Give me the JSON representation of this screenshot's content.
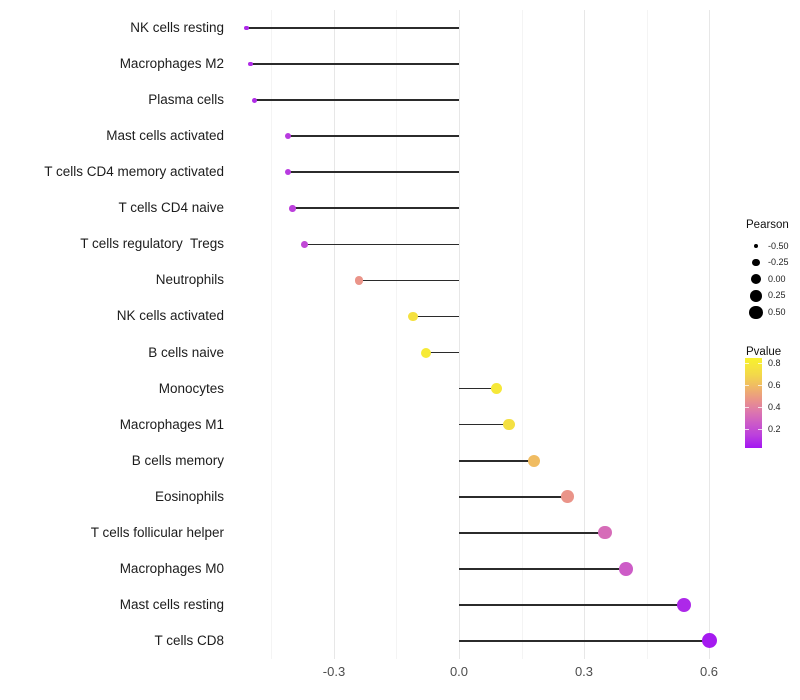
{
  "chart_data": {
    "type": "lollipop",
    "title": "",
    "xlabel": "",
    "ylabel": "",
    "x_axis": {
      "major_ticks": [
        -0.3,
        0.0,
        0.3,
        0.6
      ],
      "major_tick_labels": [
        "-0.3",
        "0.0",
        "0.3",
        "0.6"
      ],
      "minor_ticks": [
        -0.45,
        -0.15,
        0.15,
        0.45
      ],
      "xlim": [
        -0.555,
        0.62
      ],
      "baseline": 0.0
    },
    "points": [
      {
        "label": "NK cells resting",
        "pearson": -0.51,
        "pvalue": 0.08
      },
      {
        "label": "Macrophages M2",
        "pearson": -0.5,
        "pvalue": 0.09
      },
      {
        "label": "Plasma cells",
        "pearson": -0.49,
        "pvalue": 0.09
      },
      {
        "label": "Mast cells activated",
        "pearson": -0.41,
        "pvalue": 0.13
      },
      {
        "label": "T cells CD4 memory activated",
        "pearson": -0.41,
        "pvalue": 0.13
      },
      {
        "label": "T cells CD4 naive",
        "pearson": -0.4,
        "pvalue": 0.15
      },
      {
        "label": "T cells regulatory  Tregs",
        "pearson": -0.37,
        "pvalue": 0.18
      },
      {
        "label": "Neutrophils",
        "pearson": -0.24,
        "pvalue": 0.47
      },
      {
        "label": "NK cells activated",
        "pearson": -0.11,
        "pvalue": 0.75
      },
      {
        "label": "B cells naive",
        "pearson": -0.08,
        "pvalue": 0.8
      },
      {
        "label": "Monocytes",
        "pearson": 0.09,
        "pvalue": 0.79
      },
      {
        "label": "Macrophages M1",
        "pearson": 0.12,
        "pvalue": 0.74
      },
      {
        "label": "B cells memory",
        "pearson": 0.18,
        "pvalue": 0.6
      },
      {
        "label": "Eosinophils",
        "pearson": 0.26,
        "pvalue": 0.47
      },
      {
        "label": "T cells follicular helper",
        "pearson": 0.35,
        "pvalue": 0.32
      },
      {
        "label": "Macrophages M0",
        "pearson": 0.4,
        "pvalue": 0.26
      },
      {
        "label": "Mast cells resting",
        "pearson": 0.54,
        "pvalue": 0.08
      },
      {
        "label": "T cells CD8",
        "pearson": 0.6,
        "pvalue": 0.04
      }
    ],
    "legends": {
      "size": {
        "title": "Pearson",
        "items": [
          {
            "label": "-0.50",
            "value": -0.5
          },
          {
            "label": "-0.25",
            "value": -0.25
          },
          {
            "label": "0.00",
            "value": 0.0
          },
          {
            "label": "0.25",
            "value": 0.25
          },
          {
            "label": "0.50",
            "value": 0.5
          }
        ]
      },
      "color": {
        "title": "Pvalue",
        "bar_range": [
          0.03,
          0.85
        ],
        "ticks": [
          {
            "label": "0.8",
            "value": 0.8
          },
          {
            "label": "0.6",
            "value": 0.6
          },
          {
            "label": "0.4",
            "value": 0.4
          },
          {
            "label": "0.2",
            "value": 0.2
          }
        ],
        "gradient_stops": [
          [
            0.03,
            "#A316F2"
          ],
          [
            0.15,
            "#BC41DC"
          ],
          [
            0.25,
            "#CB59C9"
          ],
          [
            0.35,
            "#DB74B0"
          ],
          [
            0.47,
            "#EA9489"
          ],
          [
            0.6,
            "#F0BC62"
          ],
          [
            0.7,
            "#F3D94A"
          ],
          [
            0.85,
            "#F8F22C"
          ]
        ]
      }
    },
    "colors": {
      "stick": "#2b2b2b",
      "grid_major": "#e7e7e7",
      "grid_minor": "#f4f4f4",
      "axis_text": "#4d4d4d",
      "label_text": "#1c1c1c",
      "background": "#ffffff"
    }
  }
}
